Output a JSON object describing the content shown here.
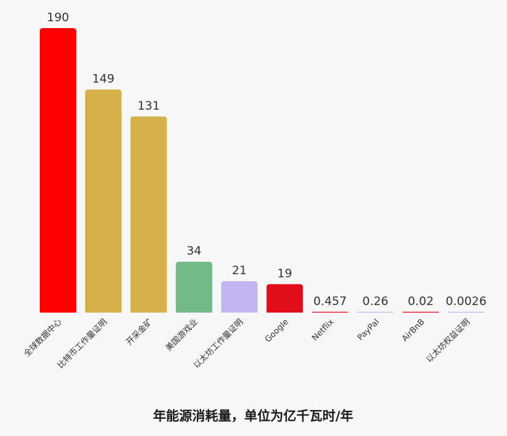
{
  "chart_data": {
    "type": "bar",
    "title": "年能源消耗量，单位为亿千瓦时/年",
    "xlabel": "",
    "ylabel": "",
    "ylim": [
      0,
      190
    ],
    "grid": false,
    "legend": "none",
    "categories": [
      "全球数据中心",
      "比特币工作量证明",
      "开采金矿",
      "美国游戏业",
      "以太坊工作量证明",
      "Google",
      "Netflix",
      "PayPal",
      "AirBnB",
      "以太坊权益证明"
    ],
    "values": [
      190,
      149,
      131,
      34,
      21,
      19,
      0.457,
      0.26,
      0.02,
      0.0026
    ],
    "value_labels": [
      "190",
      "149",
      "131",
      "34",
      "21",
      "19",
      "0.457",
      "0.26",
      "0.02",
      "0.0026"
    ],
    "colors": [
      "#ff0000",
      "#d6b04a",
      "#d6b04a",
      "#72bb89",
      "#c2b5f2",
      "#e10d1a",
      "#e10d1a",
      "#c2b5f2",
      "#e10d1a",
      "#c2b5f2"
    ]
  }
}
